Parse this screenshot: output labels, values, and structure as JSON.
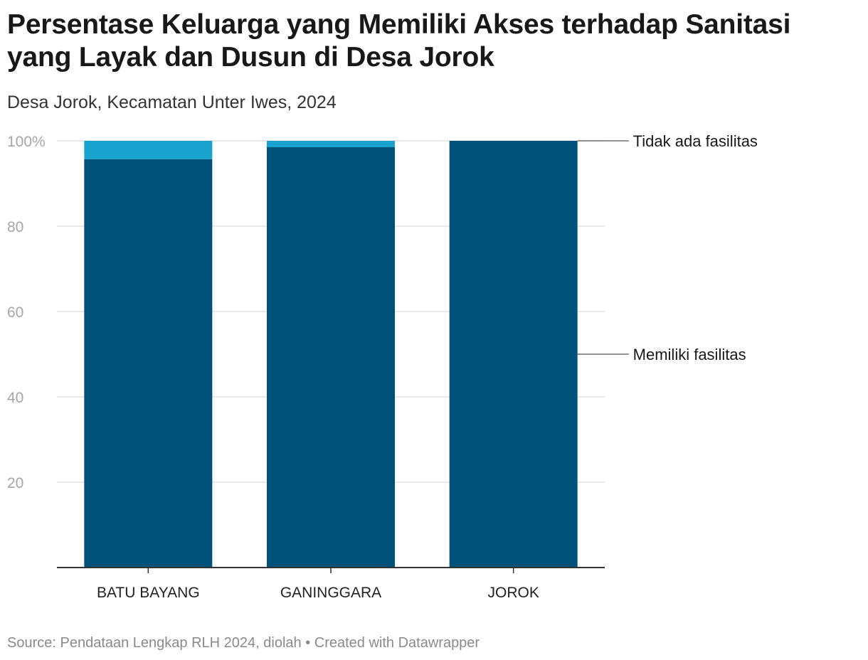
{
  "title": "Persentase Keluarga yang Memiliki Akses terhadap Sanitasi yang Layak dan Dusun di Desa Jorok",
  "subtitle": "Desa Jorok, Kecamatan Unter Iwes, 2024",
  "source": "Source: Pendataan Lengkap RLH 2024, diolah • Created with Datawrapper",
  "chart_data": {
    "type": "bar",
    "stacked": true,
    "categories": [
      "BATU BAYANG",
      "GANINGGARA",
      "JOROK"
    ],
    "series": [
      {
        "name": "Memiliki fasilitas",
        "values": [
          95.7,
          98.5,
          100
        ],
        "color": "#00527a"
      },
      {
        "name": "Tidak ada fasilitas",
        "values": [
          4.3,
          1.5,
          0
        ],
        "color": "#1aa3cf"
      }
    ],
    "ylim": [
      0,
      100
    ],
    "yticks": [
      20,
      40,
      60,
      80,
      100
    ],
    "ytick_labels": [
      "20",
      "40",
      "60",
      "80",
      "100%"
    ],
    "grid": true,
    "legend": "right, direct labels"
  }
}
